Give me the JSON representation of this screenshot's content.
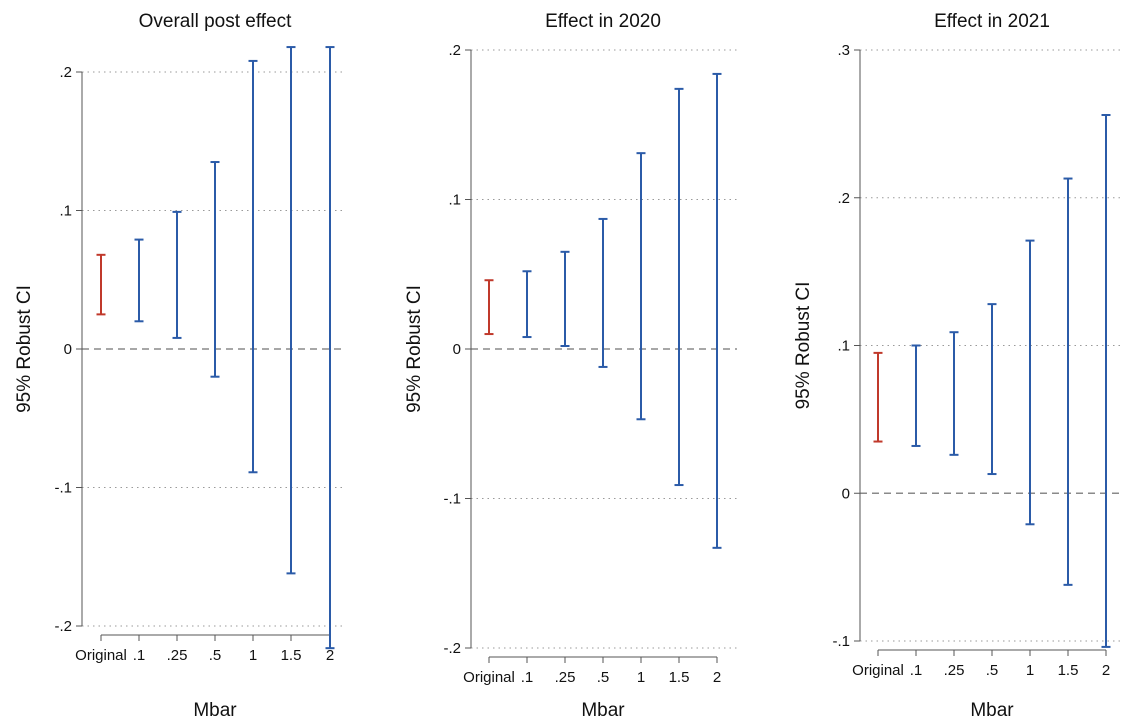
{
  "chart_data": [
    {
      "type": "errorbar",
      "title": "Overall post effect",
      "xlabel": "Mbar",
      "ylabel": "95% Robust CI",
      "categories": [
        "Original",
        ".1",
        ".25",
        ".5",
        "1",
        "1.5",
        "2"
      ],
      "ylim": [
        -0.2,
        0.2
      ],
      "yticks": [
        -0.2,
        -0.1,
        0,
        0.1,
        0.2
      ],
      "ytick_labels": [
        "-.2",
        "-.1",
        "0",
        ".1",
        ".2"
      ],
      "grid": true,
      "reference_line": 0,
      "series": [
        {
          "name": "",
          "color": "#c0392b",
          "lower": [
            0.025
          ],
          "upper": [
            0.068
          ],
          "categories": [
            "Original"
          ]
        },
        {
          "name": "",
          "color": "#2b5ba8",
          "categories": [
            ".1",
            ".25",
            ".5",
            "1",
            "1.5",
            "2"
          ],
          "lower": [
            0.02,
            0.008,
            -0.02,
            -0.089,
            -0.162,
            -0.216
          ],
          "upper": [
            0.079,
            0.099,
            0.135,
            0.208,
            0.218,
            0.218
          ]
        }
      ]
    },
    {
      "type": "errorbar",
      "title": "Effect in 2020",
      "xlabel": "Mbar",
      "ylabel": "95% Robust CI",
      "categories": [
        "Original",
        ".1",
        ".25",
        ".5",
        "1",
        "1.5",
        "2"
      ],
      "ylim": [
        -0.2,
        0.2
      ],
      "yticks": [
        -0.2,
        -0.1,
        0,
        0.1,
        0.2
      ],
      "ytick_labels": [
        "-.2",
        "-.1",
        "0",
        ".1",
        ".2"
      ],
      "grid": true,
      "reference_line": 0,
      "series": [
        {
          "name": "",
          "color": "#c0392b",
          "lower": [
            0.01
          ],
          "upper": [
            0.046
          ],
          "categories": [
            "Original"
          ]
        },
        {
          "name": "",
          "color": "#2b5ba8",
          "categories": [
            ".1",
            ".25",
            ".5",
            "1",
            "1.5",
            "2"
          ],
          "lower": [
            0.008,
            0.002,
            -0.012,
            -0.047,
            -0.091,
            -0.133
          ],
          "upper": [
            0.052,
            0.065,
            0.087,
            0.131,
            0.174,
            0.184
          ]
        }
      ]
    },
    {
      "type": "errorbar",
      "title": "Effect in 2021",
      "xlabel": "Mbar",
      "ylabel": "95% Robust CI",
      "categories": [
        "Original",
        ".1",
        ".25",
        ".5",
        "1",
        "1.5",
        "2"
      ],
      "ylim": [
        -0.1,
        0.3
      ],
      "yticks": [
        -0.1,
        0,
        0.1,
        0.2,
        0.3
      ],
      "ytick_labels": [
        "-.1",
        "0",
        ".1",
        ".2",
        ".3"
      ],
      "grid": true,
      "reference_line": 0,
      "series": [
        {
          "name": "",
          "color": "#c0392b",
          "lower": [
            0.035
          ],
          "upper": [
            0.095
          ],
          "categories": [
            "Original"
          ]
        },
        {
          "name": "",
          "color": "#2b5ba8",
          "categories": [
            ".1",
            ".25",
            ".5",
            "1",
            "1.5",
            "2"
          ],
          "lower": [
            0.032,
            0.026,
            0.013,
            -0.021,
            -0.062,
            -0.104
          ],
          "upper": [
            0.1,
            0.109,
            0.128,
            0.171,
            0.213,
            0.256
          ]
        }
      ]
    }
  ]
}
